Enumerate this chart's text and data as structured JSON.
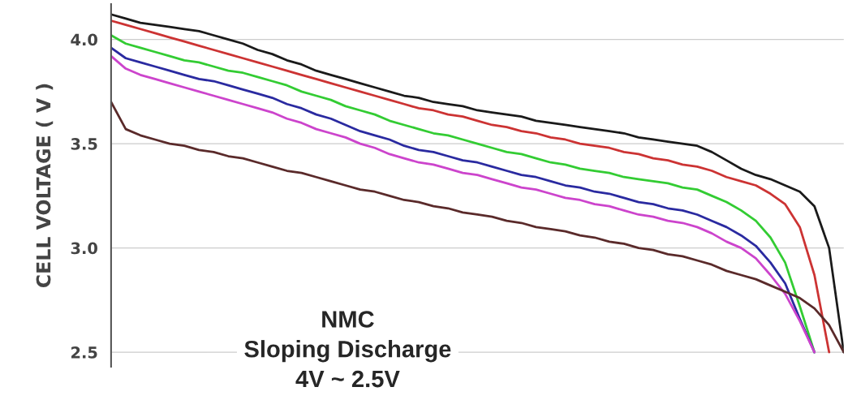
{
  "chart_data": {
    "type": "line",
    "ylabel": "CELL VOLTAGE ( V )",
    "annotations": [
      "NMC\nSloping Discharge\n4V ~ 2.5V"
    ],
    "categories": [
      null,
      null,
      null,
      null,
      null,
      null,
      null,
      null,
      null,
      null,
      null,
      null,
      null,
      null,
      null,
      null,
      null,
      null,
      null,
      null,
      null,
      null,
      null,
      null,
      null,
      null,
      null,
      null,
      null,
      null,
      null,
      null,
      null,
      null,
      null,
      null,
      null,
      null,
      null,
      null,
      null,
      null,
      null,
      null,
      null,
      null,
      null,
      null,
      null,
      null,
      null
    ],
    "ylim": [
      2.43,
      4.17
    ],
    "yticks": [
      {
        "value": 2.5,
        "label": "2.5"
      },
      {
        "value": 3,
        "label": "3.0"
      },
      {
        "value": 3.5,
        "label": "3.5"
      },
      {
        "value": 4,
        "label": "4.0"
      }
    ],
    "grid": "y",
    "tick_labels": "y",
    "marker": "none",
    "line_style": "solid",
    "series": [
      {
        "color": "#1a1a1a",
        "values": [
          4.12,
          4.1,
          4.08,
          4.07,
          4.06,
          4.05,
          4.04,
          4.02,
          4.0,
          3.98,
          3.95,
          3.93,
          3.9,
          3.88,
          3.85,
          3.83,
          3.81,
          3.79,
          3.77,
          3.75,
          3.73,
          3.72,
          3.7,
          3.69,
          3.68,
          3.66,
          3.65,
          3.64,
          3.63,
          3.61,
          3.6,
          3.59,
          3.58,
          3.57,
          3.56,
          3.55,
          3.53,
          3.52,
          3.51,
          3.5,
          3.49,
          3.46,
          3.42,
          3.38,
          3.35,
          3.33,
          3.3,
          3.27,
          3.2,
          3.0,
          2.5
        ]
      },
      {
        "color": "#cc3333",
        "values": [
          4.09,
          4.07,
          4.05,
          4.03,
          4.01,
          3.99,
          3.97,
          3.95,
          3.93,
          3.91,
          3.89,
          3.87,
          3.85,
          3.83,
          3.81,
          3.79,
          3.77,
          3.75,
          3.73,
          3.71,
          3.69,
          3.67,
          3.66,
          3.64,
          3.63,
          3.61,
          3.59,
          3.58,
          3.56,
          3.55,
          3.53,
          3.52,
          3.5,
          3.49,
          3.48,
          3.46,
          3.45,
          3.43,
          3.42,
          3.4,
          3.39,
          3.37,
          3.34,
          3.32,
          3.3,
          3.26,
          3.21,
          3.1,
          2.87,
          2.5,
          null
        ]
      },
      {
        "color": "#33cc33",
        "values": [
          4.02,
          3.98,
          3.96,
          3.94,
          3.92,
          3.9,
          3.89,
          3.87,
          3.85,
          3.84,
          3.82,
          3.8,
          3.78,
          3.75,
          3.73,
          3.71,
          3.68,
          3.66,
          3.64,
          3.61,
          3.59,
          3.57,
          3.55,
          3.54,
          3.52,
          3.5,
          3.48,
          3.46,
          3.45,
          3.43,
          3.41,
          3.4,
          3.38,
          3.37,
          3.36,
          3.34,
          3.33,
          3.32,
          3.31,
          3.29,
          3.28,
          3.25,
          3.22,
          3.18,
          3.13,
          3.05,
          2.93,
          2.72,
          2.5,
          null,
          null
        ]
      },
      {
        "color": "#2a2aa0",
        "values": [
          3.96,
          3.91,
          3.89,
          3.87,
          3.85,
          3.83,
          3.81,
          3.8,
          3.78,
          3.76,
          3.74,
          3.72,
          3.69,
          3.67,
          3.64,
          3.62,
          3.59,
          3.56,
          3.54,
          3.52,
          3.49,
          3.47,
          3.46,
          3.44,
          3.42,
          3.41,
          3.39,
          3.37,
          3.35,
          3.34,
          3.32,
          3.3,
          3.29,
          3.27,
          3.26,
          3.24,
          3.22,
          3.21,
          3.19,
          3.18,
          3.16,
          3.13,
          3.1,
          3.06,
          3.01,
          2.93,
          2.83,
          2.66,
          2.5,
          null,
          null
        ]
      },
      {
        "color": "#cc44cc",
        "values": [
          3.92,
          3.86,
          3.83,
          3.81,
          3.79,
          3.77,
          3.75,
          3.73,
          3.71,
          3.69,
          3.67,
          3.65,
          3.62,
          3.6,
          3.57,
          3.55,
          3.53,
          3.5,
          3.48,
          3.45,
          3.43,
          3.41,
          3.4,
          3.38,
          3.36,
          3.35,
          3.33,
          3.31,
          3.29,
          3.28,
          3.26,
          3.24,
          3.23,
          3.21,
          3.2,
          3.18,
          3.16,
          3.15,
          3.13,
          3.12,
          3.1,
          3.07,
          3.03,
          3.0,
          2.95,
          2.87,
          2.78,
          2.65,
          2.5,
          null,
          null
        ]
      },
      {
        "color": "#5a2a2a",
        "values": [
          3.7,
          3.57,
          3.54,
          3.52,
          3.5,
          3.49,
          3.47,
          3.46,
          3.44,
          3.43,
          3.41,
          3.39,
          3.37,
          3.36,
          3.34,
          3.32,
          3.3,
          3.28,
          3.27,
          3.25,
          3.23,
          3.22,
          3.2,
          3.19,
          3.17,
          3.16,
          3.15,
          3.13,
          3.12,
          3.1,
          3.09,
          3.08,
          3.06,
          3.05,
          3.03,
          3.02,
          3.0,
          2.99,
          2.97,
          2.96,
          2.94,
          2.92,
          2.89,
          2.87,
          2.85,
          2.82,
          2.79,
          2.76,
          2.71,
          2.63,
          2.5
        ]
      }
    ]
  }
}
